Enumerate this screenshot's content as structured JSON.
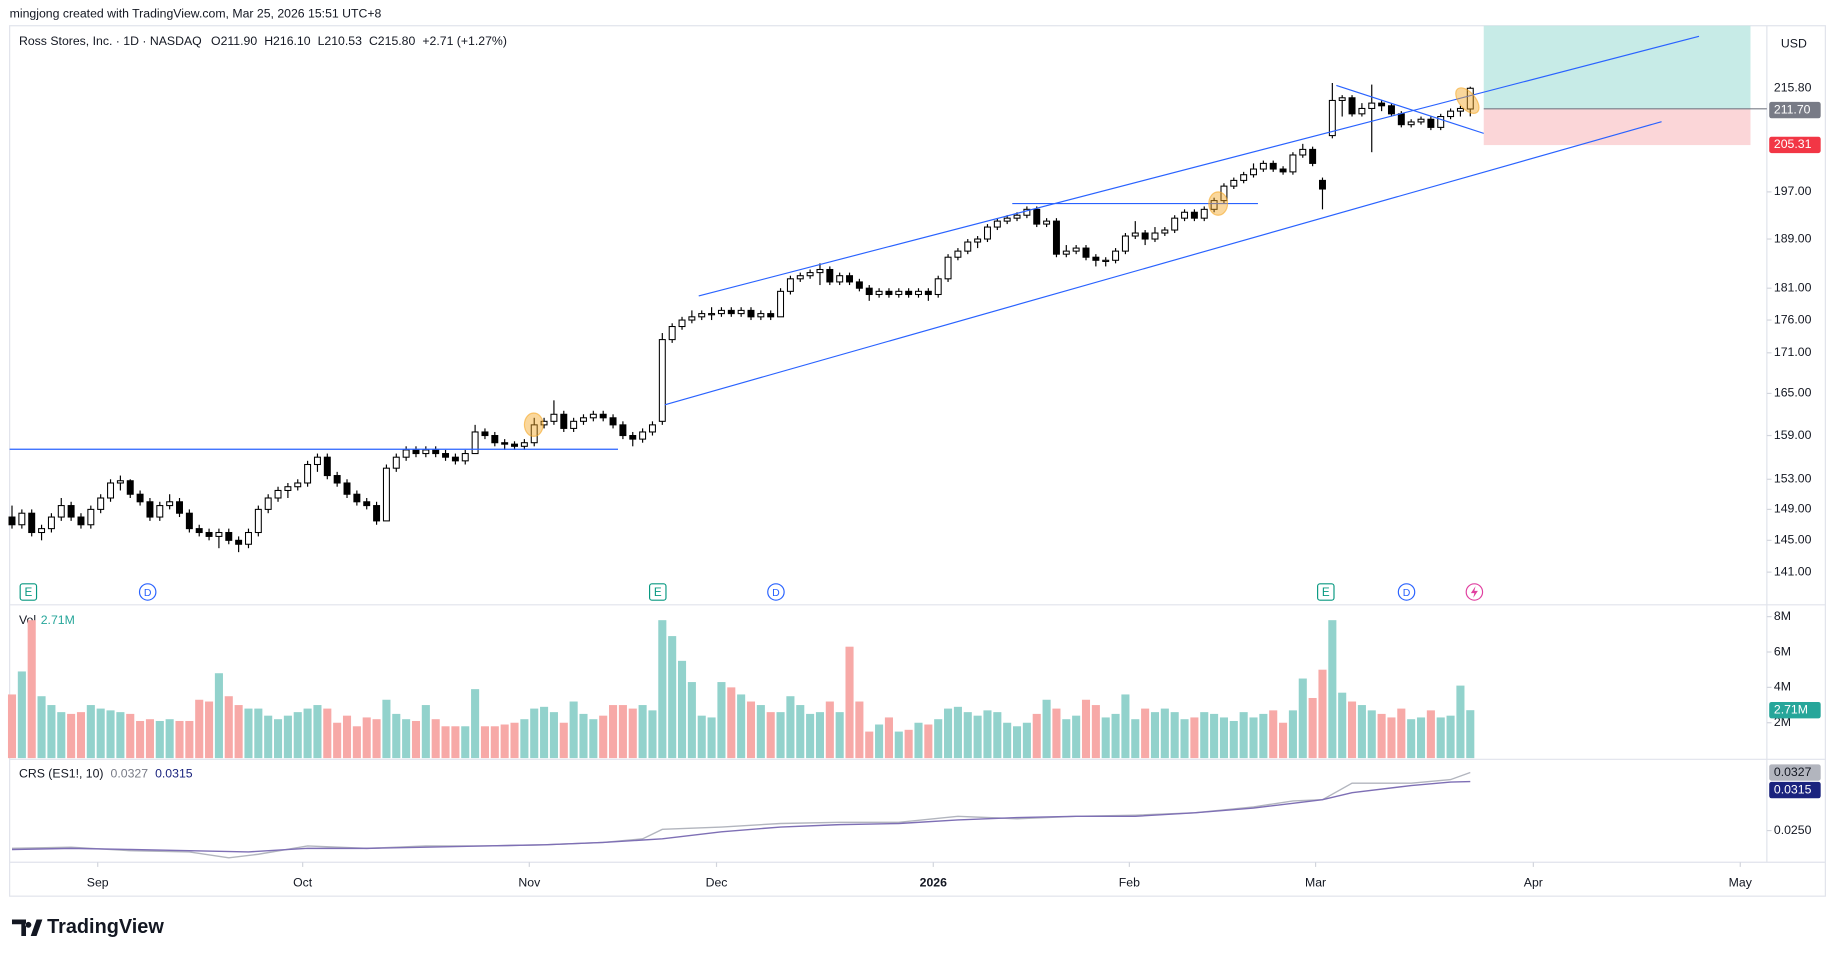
{
  "chart_data": {
    "type": "candlestick",
    "header": "mingjong created with TradingView.com, Mar 25, 2026 15:51 UTC+8",
    "symbol": "Ross Stores, Inc. · 1D · NASDAQ",
    "ohlc_legend": [
      "O211.90",
      "H216.10",
      "L210.53",
      "C215.80"
    ],
    "change": "+2.71 (+1.27%)",
    "currency": "USD",
    "brand": "TradingView",
    "event_markers": [
      "E",
      "D",
      "E",
      "D",
      "E",
      "D"
    ],
    "log_scale": true,
    "xlim": [
      -0.24,
      178.1
    ],
    "xticks": [
      {
        "value": 8.7,
        "label": "Sep"
      },
      {
        "value": 29.5,
        "label": "Oct"
      },
      {
        "value": 52.5,
        "label": "Nov"
      },
      {
        "value": 71.5,
        "label": "Dec"
      },
      {
        "value": 93.5,
        "label": "2026"
      },
      {
        "value": 113.4,
        "label": "Feb"
      },
      {
        "value": 132.3,
        "label": "Mar"
      },
      {
        "value": 154.4,
        "label": "Apr"
      },
      {
        "value": 175.4,
        "label": "May"
      }
    ],
    "ylim": [
      137,
      228
    ],
    "yticks": [
      {
        "value": 141,
        "label": "141.00"
      },
      {
        "value": 145,
        "label": "145.00"
      },
      {
        "value": 149,
        "label": "149.00"
      },
      {
        "value": 153,
        "label": "153.00"
      },
      {
        "value": 159,
        "label": "159.00"
      },
      {
        "value": 165,
        "label": "165.00"
      },
      {
        "value": 171,
        "label": "171.00"
      },
      {
        "value": 176,
        "label": "176.00"
      },
      {
        "value": 181,
        "label": "181.00"
      },
      {
        "value": 189,
        "label": "189.00"
      },
      {
        "value": 197,
        "label": "197.00"
      }
    ],
    "price_labels": [
      {
        "value": 215.8,
        "label": "215.80",
        "color": "none"
      },
      {
        "value": 211.7,
        "label": "211.70",
        "color": "#787b86"
      },
      {
        "value": 205.31,
        "label": "205.31",
        "color": "#f23645"
      }
    ],
    "up_color": "#ffffff",
    "down_color": "#000000",
    "candles": [
      [
        148,
        149.5,
        146.5,
        147
      ],
      [
        147,
        149,
        146.5,
        148.5
      ],
      [
        148.5,
        149,
        145.5,
        146
      ],
      [
        146,
        147,
        145,
        146.5
      ],
      [
        146.5,
        148.5,
        146,
        148
      ],
      [
        148,
        150.5,
        147.5,
        149.5
      ],
      [
        149.5,
        150,
        147.5,
        148
      ],
      [
        148,
        148.5,
        146.5,
        147
      ],
      [
        147,
        149.5,
        146.5,
        149
      ],
      [
        149,
        151,
        148.5,
        150.5
      ],
      [
        150.5,
        153,
        150,
        152.5
      ],
      [
        152.5,
        153.5,
        151.5,
        152.8
      ],
      [
        152.8,
        153,
        150.5,
        151
      ],
      [
        151,
        151.5,
        149.5,
        150
      ],
      [
        150,
        150.5,
        147.5,
        148
      ],
      [
        148,
        150,
        147.5,
        149.5
      ],
      [
        149.5,
        151,
        149,
        150
      ],
      [
        150,
        150.5,
        148,
        148.5
      ],
      [
        148.5,
        149,
        146,
        146.5
      ],
      [
        146.5,
        147,
        145.5,
        146
      ],
      [
        146,
        146.5,
        145,
        145.5
      ],
      [
        145.5,
        146.5,
        144,
        146
      ],
      [
        146,
        146.5,
        144.5,
        145
      ],
      [
        145,
        145.5,
        143.5,
        144.5
      ],
      [
        144.5,
        146.5,
        144,
        146
      ],
      [
        146,
        149.5,
        145.5,
        149
      ],
      [
        149,
        151,
        148.5,
        150.5
      ],
      [
        150.5,
        152,
        150,
        151.5
      ],
      [
        151.5,
        152.5,
        150.5,
        152
      ],
      [
        152,
        153,
        151.5,
        152.5
      ],
      [
        152.5,
        155.5,
        152,
        155
      ],
      [
        155,
        156.5,
        154,
        156
      ],
      [
        156,
        156.5,
        153,
        153.5
      ],
      [
        153.5,
        154,
        152,
        152.5
      ],
      [
        152.5,
        153,
        150.5,
        151
      ],
      [
        151,
        151.5,
        149.5,
        150
      ],
      [
        150,
        150.5,
        149,
        149.5
      ],
      [
        149.5,
        150,
        147,
        147.5
      ],
      [
        147.5,
        155,
        147.5,
        154.5
      ],
      [
        154.5,
        156.5,
        154,
        156
      ],
      [
        156,
        157.5,
        155.5,
        157
      ],
      [
        157,
        157.5,
        156,
        156.5
      ],
      [
        156.5,
        157.5,
        156,
        157
      ],
      [
        157,
        157.5,
        156,
        156.5
      ],
      [
        156.5,
        157,
        155.5,
        156
      ],
      [
        156,
        156.5,
        155,
        155.5
      ],
      [
        155.5,
        157,
        155,
        156.5
      ],
      [
        156.5,
        160.5,
        156.5,
        159.5
      ],
      [
        159.5,
        160,
        158.5,
        159
      ],
      [
        159,
        159.5,
        157.5,
        158
      ],
      [
        158,
        158.5,
        157,
        157.8
      ],
      [
        157.8,
        158.2,
        157,
        157.5
      ],
      [
        157.5,
        158.5,
        157,
        158
      ],
      [
        158,
        161.5,
        157.5,
        160.5
      ],
      [
        160.5,
        161.5,
        160,
        161
      ],
      [
        161,
        164,
        160.5,
        162
      ],
      [
        162,
        162.5,
        159.5,
        160
      ],
      [
        160,
        161.5,
        159.5,
        161
      ],
      [
        161,
        162,
        160.5,
        161.5
      ],
      [
        161.5,
        162.5,
        161,
        162
      ],
      [
        162,
        162.5,
        161,
        161.5
      ],
      [
        161.5,
        162,
        160,
        160.5
      ],
      [
        160.5,
        161,
        158.5,
        159
      ],
      [
        159,
        159.5,
        157.5,
        158.5
      ],
      [
        158.5,
        160,
        158,
        159.5
      ],
      [
        159.5,
        161,
        159,
        160.5
      ],
      [
        161,
        174,
        160.5,
        173
      ],
      [
        173,
        175.5,
        172.5,
        175
      ],
      [
        175,
        176.5,
        174.5,
        176
      ],
      [
        176,
        177.5,
        175.5,
        176.5
      ],
      [
        176.5,
        177.5,
        176,
        177
      ],
      [
        177,
        178,
        176,
        177
      ],
      [
        177,
        178,
        176.5,
        177.5
      ],
      [
        177.5,
        178,
        176.5,
        177
      ],
      [
        177,
        178,
        176.5,
        177.5
      ],
      [
        177.5,
        178,
        176,
        176.5
      ],
      [
        176.5,
        177.5,
        176,
        177
      ],
      [
        177,
        177.5,
        176,
        176.5
      ],
      [
        176.5,
        181,
        176.5,
        180.5
      ],
      [
        180.5,
        183,
        180,
        182.5
      ],
      [
        182.5,
        183.5,
        182,
        183
      ],
      [
        183,
        184,
        182.5,
        183.5
      ],
      [
        183.5,
        185,
        181.5,
        184
      ],
      [
        184,
        184.5,
        181.5,
        182
      ],
      [
        182,
        183.5,
        181.5,
        183
      ],
      [
        183,
        183.5,
        181.5,
        182
      ],
      [
        182,
        182.5,
        180.5,
        181
      ],
      [
        181,
        181.5,
        179,
        180
      ],
      [
        180,
        181,
        179.5,
        180.5
      ],
      [
        180.5,
        181,
        179.5,
        180
      ],
      [
        180,
        181,
        179.5,
        180.5
      ],
      [
        180.5,
        181,
        179.5,
        180
      ],
      [
        180,
        181,
        179.5,
        180.5
      ],
      [
        180.5,
        181,
        179,
        180
      ],
      [
        180,
        183,
        179.5,
        182.5
      ],
      [
        182.5,
        186.5,
        182,
        186
      ],
      [
        186,
        187.5,
        185.5,
        187
      ],
      [
        187,
        189,
        186.5,
        188.5
      ],
      [
        188.5,
        189.5,
        187.5,
        189
      ],
      [
        189,
        191.5,
        188.5,
        191
      ],
      [
        191,
        192.5,
        190.5,
        192
      ],
      [
        192,
        193,
        191.5,
        192.5
      ],
      [
        192.5,
        193.5,
        192,
        193
      ],
      [
        193,
        194.5,
        192.5,
        194
      ],
      [
        194,
        194.5,
        191,
        191.5
      ],
      [
        191.5,
        192.5,
        191,
        192
      ],
      [
        192,
        192.5,
        186,
        186.5
      ],
      [
        186.5,
        188,
        186,
        187
      ],
      [
        187,
        188,
        186.5,
        187.5
      ],
      [
        187.5,
        188,
        185.5,
        186
      ],
      [
        186,
        186.5,
        184.5,
        185.5
      ],
      [
        185.5,
        186,
        184.5,
        185.5
      ],
      [
        185.5,
        187.5,
        185,
        187
      ],
      [
        187,
        190,
        186.5,
        189.5
      ],
      [
        189.5,
        192,
        189,
        190
      ],
      [
        190,
        190.5,
        188,
        189
      ],
      [
        189,
        191,
        188.5,
        190
      ],
      [
        190,
        191,
        189.5,
        190.5
      ],
      [
        190.5,
        193,
        190,
        192.5
      ],
      [
        192.5,
        194,
        192,
        193.5
      ],
      [
        193.5,
        194,
        192,
        192.5
      ],
      [
        192.5,
        194.5,
        192,
        194
      ],
      [
        194,
        196,
        193.5,
        195.5
      ],
      [
        195.5,
        198.5,
        195,
        198
      ],
      [
        198,
        199.5,
        197.5,
        199
      ],
      [
        199,
        200.5,
        198.5,
        200
      ],
      [
        200,
        202,
        199.5,
        201
      ],
      [
        201,
        202.5,
        200.5,
        202
      ],
      [
        202,
        202.5,
        200.5,
        201
      ],
      [
        201,
        201.5,
        200,
        200.5
      ],
      [
        200.5,
        204,
        200,
        203.5
      ],
      [
        203.5,
        205.5,
        203,
        204.5
      ],
      [
        204.5,
        205,
        201.5,
        202
      ],
      [
        199,
        199.5,
        194,
        197.5
      ],
      [
        207,
        216.8,
        206.5,
        213.5
      ],
      [
        213.5,
        214.5,
        210.5,
        214
      ],
      [
        214,
        214.5,
        210.5,
        211
      ],
      [
        211,
        213,
        210.5,
        212
      ],
      [
        212,
        216.5,
        204,
        213
      ],
      [
        213,
        213.5,
        211.5,
        212.5
      ],
      [
        212.5,
        213,
        210.5,
        211
      ],
      [
        211,
        211.5,
        208.5,
        209
      ],
      [
        209,
        210,
        208.5,
        209.5
      ],
      [
        209.5,
        210.5,
        209,
        210
      ],
      [
        210,
        210.5,
        208,
        208.5
      ],
      [
        208.5,
        211,
        208,
        210.5
      ],
      [
        210.5,
        212,
        210,
        211.5
      ],
      [
        211.5,
        212.5,
        210.5,
        212
      ],
      [
        211.9,
        216.1,
        210.53,
        215.8
      ]
    ],
    "volume": {
      "name": "Vol",
      "last_label": "2.71M",
      "up_color": "#92d2cc",
      "down_color": "#f7a9a7",
      "ylim": [
        0,
        8.6
      ],
      "yticks": [
        {
          "value": 8,
          "label": "8M"
        },
        {
          "value": 6,
          "label": "6M"
        },
        {
          "value": 4,
          "label": "4M"
        },
        {
          "value": 2,
          "label": "2M"
        }
      ],
      "values": [
        3.6,
        4.9,
        7.8,
        3.5,
        3.0,
        2.6,
        2.5,
        2.6,
        3.0,
        2.8,
        2.7,
        2.6,
        2.5,
        2.1,
        2.2,
        2.1,
        2.2,
        2.1,
        2.1,
        3.3,
        3.2,
        4.8,
        3.5,
        3.0,
        2.8,
        2.8,
        2.4,
        2.2,
        2.4,
        2.6,
        2.8,
        3.0,
        2.8,
        2.0,
        2.4,
        1.8,
        2.3,
        2.2,
        3.3,
        2.5,
        2.2,
        2.1,
        3.0,
        2.2,
        1.8,
        1.8,
        1.8,
        3.9,
        1.8,
        1.8,
        1.9,
        2.0,
        2.2,
        2.8,
        2.9,
        2.6,
        2.0,
        3.2,
        2.5,
        2.2,
        2.4,
        3.0,
        3.0,
        2.8,
        3.0,
        2.7,
        7.8,
        6.9,
        5.5,
        4.3,
        2.4,
        2.3,
        4.3,
        4.0,
        3.6,
        3.2,
        3.0,
        2.6,
        2.6,
        3.5,
        3.0,
        2.5,
        2.6,
        3.2,
        2.6,
        6.3,
        3.2,
        1.5,
        1.9,
        2.3,
        1.5,
        1.6,
        2.0,
        1.9,
        2.2,
        2.8,
        2.9,
        2.6,
        2.4,
        2.7,
        2.6,
        2.0,
        1.8,
        2.0,
        2.5,
        3.3,
        2.8,
        2.2,
        2.4,
        3.3,
        3.0,
        2.3,
        2.5,
        3.6,
        2.2,
        2.8,
        2.6,
        2.8,
        2.6,
        2.2,
        2.3,
        2.6,
        2.5,
        2.3,
        2.1,
        2.6,
        2.3,
        2.5,
        2.7,
        2.0,
        2.7,
        4.5,
        3.4,
        5.0,
        7.8,
        3.7,
        3.2,
        3.0,
        2.7,
        2.5,
        2.3,
        2.8,
        2.2,
        2.3,
        2.7,
        2.3,
        2.4,
        4.1,
        2.71
      ]
    },
    "crs": {
      "name": "CRS (ES1!, 10)",
      "ylim": [
        0.0208,
        0.0343
      ],
      "yticks": [
        {
          "value": 0.025,
          "label": "0.0250"
        }
      ],
      "series": [
        {
          "color": "#b2b5be",
          "box_text": "#131722",
          "last_label": "0.0327",
          "x": [
            0,
            6,
            12,
            18,
            22,
            25,
            30,
            36,
            42,
            48,
            54,
            60,
            64,
            66,
            72,
            78,
            84,
            90,
            96,
            102,
            108,
            114,
            120,
            126,
            130,
            133,
            136,
            142,
            146,
            148
          ],
          "values": [
            0.02264,
            0.0228,
            0.02233,
            0.02217,
            0.02139,
            0.02186,
            0.02296,
            0.02264,
            0.02296,
            0.02296,
            0.02311,
            0.02343,
            0.0239,
            0.02516,
            0.02547,
            0.02594,
            0.0261,
            0.0261,
            0.02689,
            0.02657,
            0.02689,
            0.02704,
            0.02736,
            0.02814,
            0.02893,
            0.02909,
            0.03129,
            0.03129,
            0.03176,
            0.0327
          ]
        },
        {
          "color": "#7e6fb5",
          "box_color": "#1a237e",
          "box_text": "#ffffff",
          "last_label": "0.0315",
          "x": [
            0,
            6,
            12,
            18,
            24,
            30,
            36,
            42,
            48,
            54,
            60,
            66,
            72,
            78,
            84,
            90,
            96,
            102,
            108,
            114,
            120,
            126,
            130,
            133,
            136,
            142,
            146,
            148
          ],
          "values": [
            0.02249,
            0.02264,
            0.02249,
            0.02233,
            0.02217,
            0.02264,
            0.02264,
            0.0228,
            0.02296,
            0.02311,
            0.02343,
            0.0239,
            0.02484,
            0.02547,
            0.02579,
            0.02594,
            0.02641,
            0.02673,
            0.02689,
            0.02689,
            0.02736,
            0.02799,
            0.02861,
            0.02909,
            0.03003,
            0.03097,
            0.03144,
            0.0315
          ]
        }
      ]
    }
  }
}
